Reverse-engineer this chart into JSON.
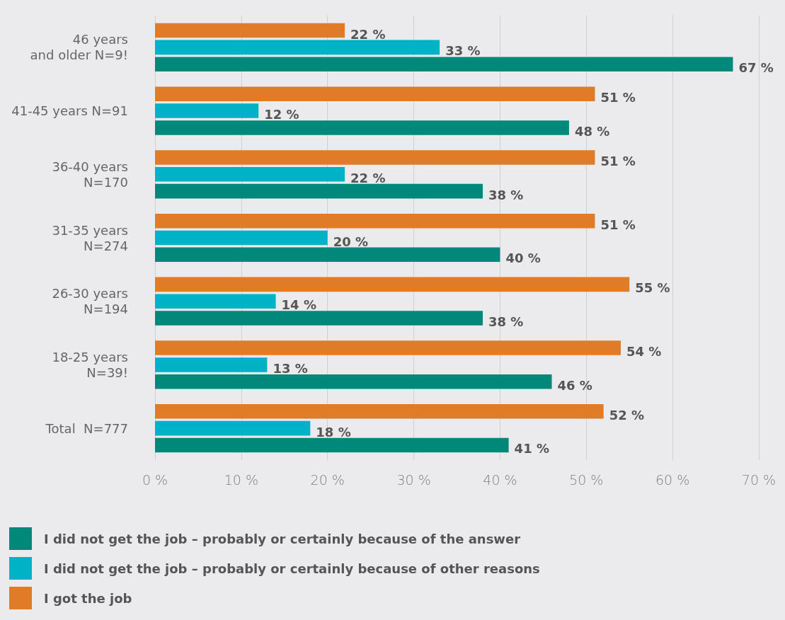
{
  "chart_data": {
    "type": "bar",
    "orientation": "horizontal",
    "categories": [
      "46 years\nand older N=9!",
      "41-45 years N=91",
      "36-40 years\nN=170",
      "31-35 years\nN=274",
      "26-30 years\nN=194",
      "18-25 years\nN=39!",
      "Total  N=777"
    ],
    "series": [
      {
        "name": "I got the job",
        "color": "#e07b28",
        "values": [
          22,
          51,
          51,
          51,
          55,
          54,
          52
        ],
        "value_labels": [
          "22 %",
          "51 %",
          "51 %",
          "51 %",
          "55 %",
          "54 %",
          "52 %"
        ]
      },
      {
        "name": "I did not get the job – probably or certainly because of other reasons",
        "color": "#00b2c5",
        "values": [
          33,
          12,
          22,
          20,
          14,
          13,
          18
        ],
        "value_labels": [
          "33 %",
          "12 %",
          "22 %",
          "20 %",
          "14 %",
          "13 %",
          "18 %"
        ]
      },
      {
        "name": "I did not get the job – probably or certainly because of the answer",
        "color": "#00897a",
        "values": [
          67,
          48,
          38,
          40,
          38,
          46,
          41
        ],
        "value_labels": [
          "67 %",
          "48 %",
          "38 %",
          "40 %",
          "38 %",
          "46 %",
          "41 %"
        ]
      }
    ],
    "xlim": [
      0,
      70
    ],
    "xticks": [
      {
        "value": 0,
        "label": "0 %"
      },
      {
        "value": 10,
        "label": "10 %"
      },
      {
        "value": 20,
        "label": "20 %"
      },
      {
        "value": 30,
        "label": "30 %"
      },
      {
        "value": 40,
        "label": "40 %"
      },
      {
        "value": 50,
        "label": "50 %"
      },
      {
        "value": 60,
        "label": "60 %"
      },
      {
        "value": 70,
        "label": "70 %"
      }
    ],
    "grid": "x",
    "legend": "bottom left"
  }
}
